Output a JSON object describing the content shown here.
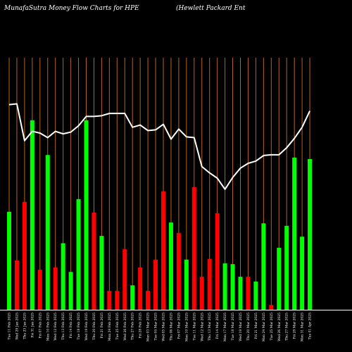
{
  "header": {
    "left_title": "MunafaSutra  Money Flow  Charts for HPE",
    "right_title": "(Hewlett Packard Ent"
  },
  "colors": {
    "background": "#000000",
    "up": "#00ff00",
    "down": "#ff0000",
    "grid": "#b5651d",
    "line": "#ffffff"
  },
  "chart_data": {
    "type": "bar",
    "ylim": [
      0,
      100
    ],
    "bars": [
      {
        "label": "Tue 11 Feb 2025",
        "value": 38.9,
        "dir": "up"
      },
      {
        "label": "Wed 29 Jan 2025",
        "value": 19.6,
        "dir": "down"
      },
      {
        "label": "Thu 23 Jan 2025",
        "value": 42.8,
        "dir": "down"
      },
      {
        "label": "Fri 31 Jan 2025",
        "value": 75.2,
        "dir": "up"
      },
      {
        "label": "Fri 07 Feb 2025",
        "value": 15.9,
        "dir": "down"
      },
      {
        "label": "Mon 10 Feb 2025",
        "value": 61.4,
        "dir": "up"
      },
      {
        "label": "Wed 12 Feb 2025",
        "value": 16.8,
        "dir": "down"
      },
      {
        "label": "Thu 13 Feb 2025",
        "value": 26.4,
        "dir": "up"
      },
      {
        "label": "Fri 14 Feb 2025",
        "value": 15.0,
        "dir": "up"
      },
      {
        "label": "Tue 18 Feb 2025",
        "value": 43.9,
        "dir": "up"
      },
      {
        "label": "Wed 19 Feb 2025",
        "value": 75.2,
        "dir": "up"
      },
      {
        "label": "Thu 20 Feb 2025",
        "value": 38.6,
        "dir": "down"
      },
      {
        "label": "Fri 21 Feb 2025",
        "value": 29.3,
        "dir": "up"
      },
      {
        "label": "Mon 24 Feb 2025",
        "value": 7.5,
        "dir": "down"
      },
      {
        "label": "Tue 25 Feb 2025",
        "value": 7.5,
        "dir": "down"
      },
      {
        "label": "Wed 26 Feb 2025",
        "value": 24.0,
        "dir": "down"
      },
      {
        "label": "Thu 27 Feb 2025",
        "value": 9.7,
        "dir": "up"
      },
      {
        "label": "Fri 28 Feb 2025",
        "value": 16.8,
        "dir": "down"
      },
      {
        "label": "Mon 03 Mar 2025",
        "value": 7.5,
        "dir": "down"
      },
      {
        "label": "Tue 04 Mar 2025",
        "value": 19.9,
        "dir": "down"
      },
      {
        "label": "Wed 05 Mar 2025",
        "value": 47.0,
        "dir": "down"
      },
      {
        "label": "Thu 06 Mar 2025",
        "value": 34.6,
        "dir": "up"
      },
      {
        "label": "Fri 07 Mar 2025",
        "value": 30.5,
        "dir": "down"
      },
      {
        "label": "Mon 10 Mar 2025",
        "value": 19.9,
        "dir": "up"
      },
      {
        "label": "Tue 11 Mar 2025",
        "value": 48.6,
        "dir": "down"
      },
      {
        "label": "Wed 12 Mar 2025",
        "value": 13.1,
        "dir": "down"
      },
      {
        "label": "Thu 13 Mar 2025",
        "value": 20.2,
        "dir": "down"
      },
      {
        "label": "Fri 14 Mar 2025",
        "value": 38.3,
        "dir": "down"
      },
      {
        "label": "Mon 17 Mar 2025",
        "value": 18.4,
        "dir": "up"
      },
      {
        "label": "Tue 18 Mar 2025",
        "value": 18.1,
        "dir": "up"
      },
      {
        "label": "Wed 19 Mar 2025",
        "value": 13.1,
        "dir": "up"
      },
      {
        "label": "Thu 20 Mar 2025",
        "value": 13.1,
        "dir": "down"
      },
      {
        "label": "Fri 21 Mar 2025",
        "value": 11.2,
        "dir": "up"
      },
      {
        "label": "Mon 24 Mar 2025",
        "value": 34.3,
        "dir": "up"
      },
      {
        "label": "Tue 25 Mar 2025",
        "value": 1.9,
        "dir": "down"
      },
      {
        "label": "Wed 26 Mar 2025",
        "value": 24.6,
        "dir": "up"
      },
      {
        "label": "Thu 27 Mar 2025",
        "value": 33.3,
        "dir": "up"
      },
      {
        "label": "Fri 28 Mar 2025",
        "value": 60.4,
        "dir": "up"
      },
      {
        "label": "Mon 31 Mar 2025",
        "value": 29.0,
        "dir": "up"
      },
      {
        "label": "Tue 01 Apr 2025",
        "value": 59.8,
        "dir": "up"
      }
    ],
    "x_labels": [
      "Tue 11 Feb 2025",
      "Wed 29 Jan 2025",
      "Thu 23 Jan 2025",
      "Fri 31 Jan 2025",
      "Fri 07 Feb 2025",
      "Mon 10 Feb 2025",
      "Wed 12 Feb 2025",
      "Thu 13 Feb 2025",
      "Fri 14 Feb 2025",
      "Tue 18 Feb 2025",
      "Wed 19 Feb 2025",
      "Thu 20 Feb 2025",
      "Fri 21 Feb 2025",
      "Mon 24 Feb 2025",
      "Tue 25 Feb 2025",
      "Wed 26 Feb 2025",
      "Thu 27 Feb 2025",
      "Fri 28 Feb 2025",
      "Mon 03 Mar 2025",
      "Tue 04 Mar 2025",
      "Wed 05 Mar 2025",
      "Thu 06 Mar 2025",
      "Fri 07 Mar 2025",
      "Mon 10 Mar 2025",
      "Tue 11 Mar 2025",
      "Wed 12 Mar 2025",
      "Thu 13 Mar 2025",
      "Fri 14 Mar 2025",
      "Mon 17 Mar 2025",
      "Tue 18 Mar 2025",
      "Wed 19 Mar 2025",
      "Thu 20 Mar 2025",
      "Fri 21 Mar 2025",
      "Mon 24 Mar 2025",
      "Tue 25 Mar 2025",
      "Wed 26 Mar 2025",
      "Thu 27 Mar 2025",
      "Fri 28 Mar 2025",
      "Mon 31 Mar 2025",
      "Tue 01 Apr 2025"
    ],
    "line": [
      81.4,
      81.7,
      67.1,
      70.8,
      70.1,
      68.3,
      70.8,
      69.8,
      70.5,
      73.0,
      76.7,
      76.7,
      77.0,
      77.9,
      77.9,
      77.9,
      72.4,
      73.3,
      71.1,
      71.4,
      73.6,
      67.7,
      71.7,
      68.6,
      68.3,
      56.8,
      54.3,
      52.2,
      47.8,
      52.5,
      56.2,
      58.1,
      59.0,
      61.2,
      61.5,
      61.5,
      64.3,
      68.0,
      72.4,
      78.9
    ],
    "grid": true
  }
}
